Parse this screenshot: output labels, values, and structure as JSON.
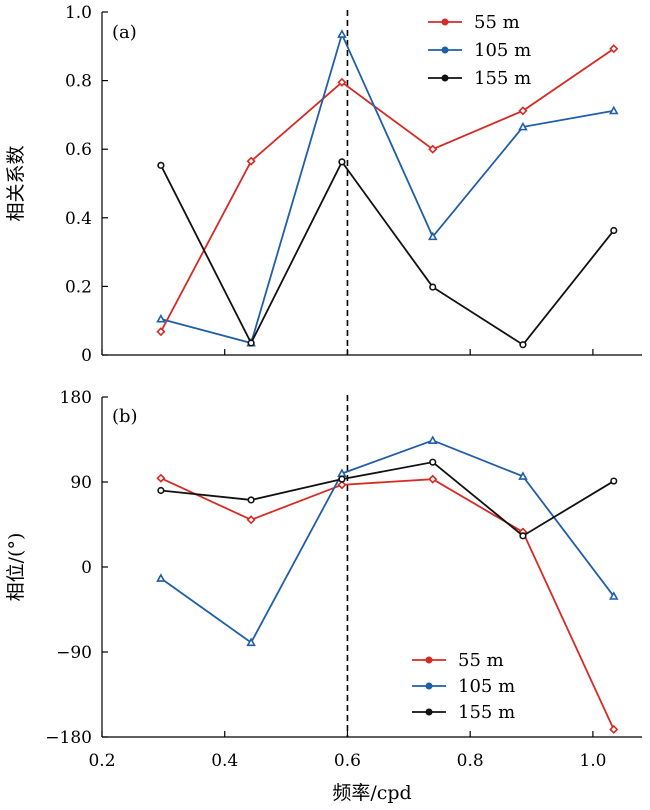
{
  "chart_data": [
    {
      "type": "line",
      "panel_label": "(a)",
      "ylabel": "相关系数",
      "xlabel": "",
      "xlim": [
        0.2,
        1.08
      ],
      "ylim": [
        0,
        1.0
      ],
      "xticks": [
        "0.2",
        "0.4",
        "0.6",
        "0.8",
        "1.0"
      ],
      "yticks": [
        "0",
        "0.2",
        "0.4",
        "0.6",
        "0.8",
        "1.0"
      ],
      "show_x_tick_labels": false,
      "legend_position": "top-right",
      "vline_x": 0.6,
      "x": [
        0.296,
        0.443,
        0.591,
        0.739,
        0.886,
        1.034
      ],
      "series": [
        {
          "name": "55 m",
          "color": "#d62b24",
          "marker": "diamond",
          "values": [
            0.068,
            0.565,
            0.795,
            0.6,
            0.712,
            0.893
          ]
        },
        {
          "name": "105 m",
          "color": "#1f5ea8",
          "marker": "triangle",
          "values": [
            0.105,
            0.035,
            0.935,
            0.345,
            0.665,
            0.712
          ]
        },
        {
          "name": "155 m",
          "color": "#111111",
          "marker": "circle",
          "values": [
            0.553,
            0.035,
            0.563,
            0.198,
            0.03,
            0.363
          ]
        }
      ]
    },
    {
      "type": "line",
      "panel_label": "(b)",
      "ylabel": "相位/(°)",
      "xlabel": "频率/cpd",
      "xlim": [
        0.2,
        1.08
      ],
      "ylim": [
        -180,
        180
      ],
      "xticks": [
        "0.2",
        "0.4",
        "0.6",
        "0.8",
        "1.0"
      ],
      "yticks": [
        "−180",
        "−90",
        "0",
        "90",
        "180"
      ],
      "show_x_tick_labels": true,
      "legend_position": "bottom-right",
      "vline_x": 0.6,
      "x": [
        0.296,
        0.443,
        0.591,
        0.739,
        0.886,
        1.034
      ],
      "series": [
        {
          "name": "55 m",
          "color": "#d62b24",
          "marker": "diamond",
          "values": [
            94,
            50,
            87,
            93,
            37,
            -172
          ]
        },
        {
          "name": "105 m",
          "color": "#1f5ea8",
          "marker": "triangle",
          "values": [
            -12,
            -80,
            99,
            134,
            96,
            -31
          ]
        },
        {
          "name": "155 m",
          "color": "#111111",
          "marker": "circle",
          "values": [
            81,
            71,
            93,
            111,
            33,
            91
          ]
        }
      ]
    }
  ]
}
